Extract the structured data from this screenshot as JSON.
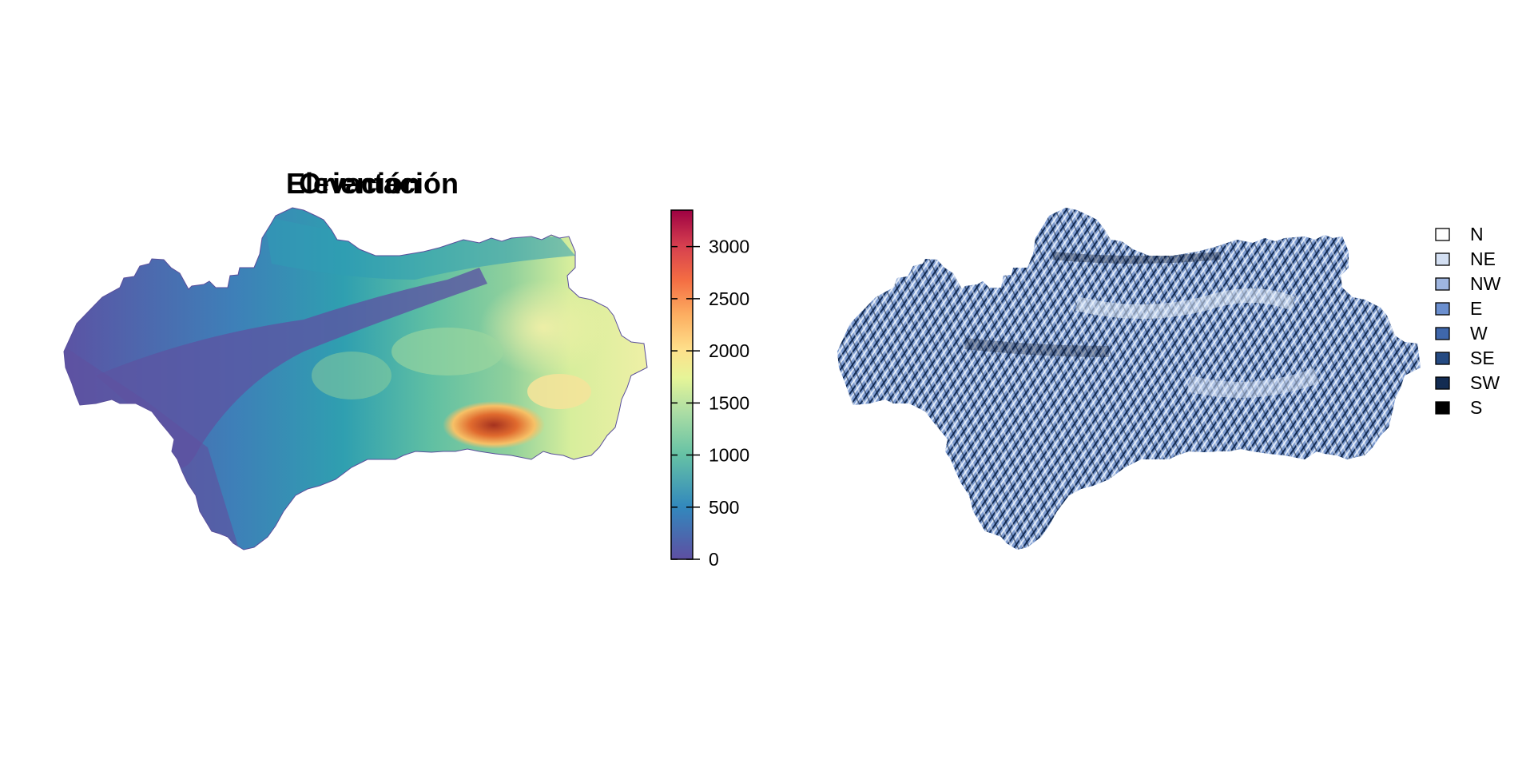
{
  "elevation": {
    "title": "Elevación",
    "colorbar": {
      "ticks": [
        0,
        500,
        1000,
        1500,
        2000,
        2500,
        3000
      ],
      "tick_labels": [
        "0",
        "500",
        "1000",
        "1500",
        "2000",
        "2500",
        "3000"
      ],
      "range": [
        0,
        3350
      ],
      "colors": [
        "#5e4fa2",
        "#3288bd",
        "#66c2a5",
        "#abdda4",
        "#e6f598",
        "#fee08b",
        "#fdae61",
        "#f46d43",
        "#d53e4f",
        "#9e0142"
      ]
    }
  },
  "orientation": {
    "title": "Orientación",
    "legend": [
      {
        "label": "N",
        "color": "#ffffff"
      },
      {
        "label": "NE",
        "color": "#d3dff2"
      },
      {
        "label": "NW",
        "color": "#9fb6e0"
      },
      {
        "label": "E",
        "color": "#6b8fcf"
      },
      {
        "label": "W",
        "color": "#3f67ab"
      },
      {
        "label": "SE",
        "color": "#254a82"
      },
      {
        "label": "SW",
        "color": "#132c52"
      },
      {
        "label": "S",
        "color": "#000000"
      }
    ]
  }
}
